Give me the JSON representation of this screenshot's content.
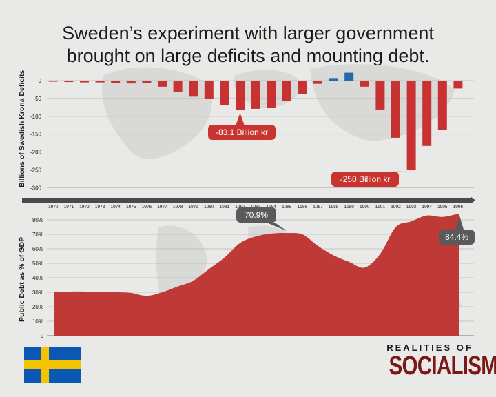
{
  "title": {
    "line1": "Sweden’s experiment with larger government",
    "line2": "brought on large deficits and mounting debt."
  },
  "colors": {
    "deficit": "#c73232",
    "surplus": "#2667ad",
    "debt_fill": "#bf3a36",
    "callout_red": "#c8342f",
    "callout_gray": "#5a5a5a",
    "flag_blue": "#0a58b4",
    "flag_yellow": "#f5c400",
    "brand": "#7c1717"
  },
  "branding": {
    "top": "REALITIES OF",
    "bottom": "SOCIALISM"
  },
  "flag_icon": "sweden-flag-icon",
  "chart_data": [
    {
      "type": "bar",
      "ylabel": "Billions of Swedish Krona Deficits",
      "ylim": [
        -300,
        20
      ],
      "yticks": [
        0,
        -50,
        -100,
        -150,
        -200,
        -250,
        -300
      ],
      "grid": true,
      "categories": [
        "1970",
        "1971",
        "1972",
        "1973",
        "1974",
        "1975",
        "1976",
        "1977",
        "1978",
        "1979",
        "1980",
        "1981",
        "1982",
        "1983",
        "1984",
        "1985",
        "1986",
        "1987",
        "1988",
        "1989",
        "1990",
        "1991",
        "1992",
        "1993",
        "1994",
        "1995",
        "1996"
      ],
      "values": [
        -3,
        -4,
        -5,
        -5,
        -7,
        -8,
        -6,
        -17,
        -31,
        -45,
        -52,
        -68,
        -83.1,
        -79,
        -76,
        -57,
        -38,
        -9,
        7,
        22,
        -17,
        -81,
        -160,
        -250,
        -183,
        -138,
        -22
      ],
      "annotations": [
        {
          "category": "1982",
          "text": "-83.1 Billion kr"
        },
        {
          "category": "1993",
          "text": "-250 Billion kr"
        }
      ]
    },
    {
      "type": "area",
      "ylabel": "Public Debt as % of GDP",
      "ylim": [
        0,
        80
      ],
      "yticks": [
        "0",
        "10%",
        "20%",
        "30%",
        "40%",
        "50%",
        "60%",
        "70%",
        "80%"
      ],
      "grid": true,
      "x": [
        "1970",
        "1971",
        "1972",
        "1973",
        "1974",
        "1975",
        "1976",
        "1977",
        "1978",
        "1979",
        "1980",
        "1981",
        "1982",
        "1983",
        "1984",
        "1985",
        "1986",
        "1987",
        "1988",
        "1989",
        "1990",
        "1991",
        "1992",
        "1993",
        "1994",
        "1995",
        "1996"
      ],
      "values": [
        30,
        30.5,
        30.5,
        30,
        30,
        29.5,
        27.5,
        30,
        34,
        38,
        46,
        54,
        64,
        68.5,
        70.5,
        70.9,
        70,
        62,
        55.5,
        51,
        47,
        56.5,
        75,
        79,
        83,
        82,
        84.4
      ],
      "annotations": [
        {
          "x": "1985",
          "text": "70.9%"
        },
        {
          "x": "1996",
          "text": "84.4%"
        }
      ]
    }
  ]
}
